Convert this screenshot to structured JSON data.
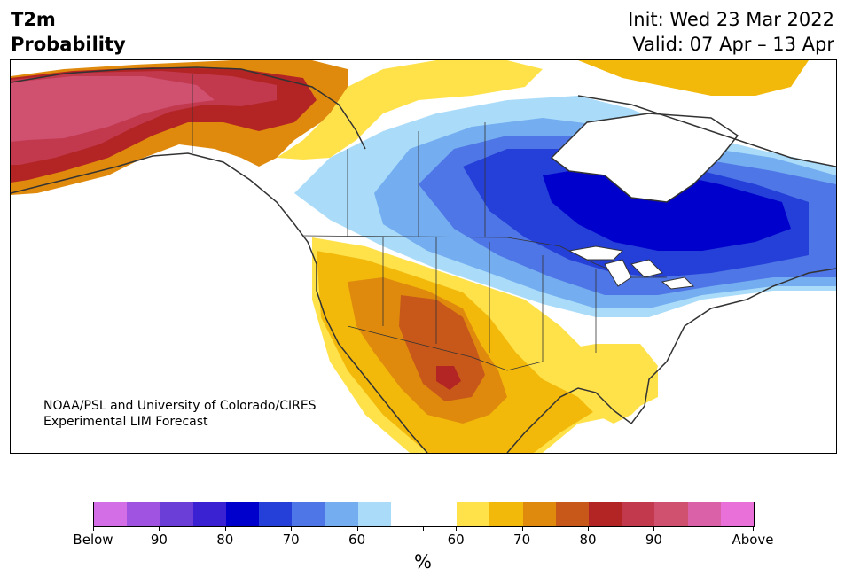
{
  "title": {
    "left_line1": "T2m",
    "left_line2": "Probability",
    "right_line1": "Init: Wed 23 Mar 2022",
    "right_line2": "Valid: 07 Apr – 13 Apr"
  },
  "credit": {
    "line1": "NOAA/PSL and University of Colorado/CIRES",
    "line2": "Experimental LIM Forecast"
  },
  "colorbar": {
    "unit": "%",
    "colors": [
      "#d36ee6",
      "#a053e0",
      "#6b3ed8",
      "#3a22d2",
      "#0000cc",
      "#2440d9",
      "#4f76e6",
      "#74aef0",
      "#aadcfa",
      "#ffffff",
      "#ffffff",
      "#ffe24a",
      "#f2b90b",
      "#df8a0c",
      "#c8581a",
      "#b32424",
      "#c2394e",
      "#d05070",
      "#da60a8",
      "#e870d8"
    ],
    "labels": [
      "Below",
      "90",
      "80",
      "70",
      "60",
      "60",
      "70",
      "80",
      "90",
      "Above"
    ]
  },
  "colors": {
    "neutral": "#ffffff",
    "below_light": "#aadcfa",
    "below_mid": "#74aef0",
    "below_strong": "#4f76e6",
    "below_deep": "#2440d9",
    "below_deepest": "#0000cc",
    "above_light": "#ffe24a",
    "above_mid": "#f2b90b",
    "above_strong": "#df8a0c",
    "above_deep": "#c8581a",
    "above_red": "#b32424",
    "above_crimson": "#c2394e",
    "above_pink": "#d05070",
    "border": "#333333"
  }
}
